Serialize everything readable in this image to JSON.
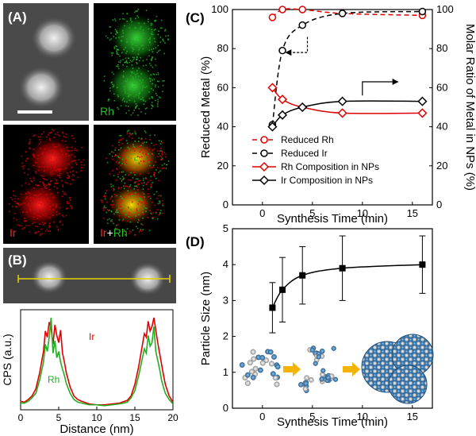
{
  "figure": {
    "panels": {
      "A": {
        "label": "(A)",
        "tiles": [
          "",
          "Rh",
          "Ir",
          "Ir+Rh"
        ],
        "tile_label_parts": {
          "ir": "Ir",
          "plus": "+",
          "rh": "Rh"
        }
      },
      "B": {
        "label": "(B)"
      },
      "C": {
        "label": "(C)"
      },
      "D": {
        "label": "(D)"
      }
    },
    "colors": {
      "rh": "#20b020",
      "ir": "#e00000",
      "black": "#000000",
      "line_profile": "#e6d200",
      "arrow_yellow": "#f4b400"
    }
  },
  "chart_data": [
    {
      "id": "B-profile",
      "type": "line",
      "xlabel": "Distance (nm)",
      "ylabel": "CPS (a.u.)",
      "xlim": [
        0,
        20
      ],
      "xticks": [
        0,
        5,
        10,
        15,
        20
      ],
      "series": [
        {
          "name": "Ir",
          "color": "#e00000",
          "x": [
            0,
            0.5,
            1,
            1.5,
            2,
            2.5,
            3,
            3.25,
            3.5,
            3.75,
            4,
            4.25,
            4.5,
            4.75,
            5,
            5.25,
            5.5,
            5.75,
            6,
            6.5,
            7,
            7.5,
            8,
            9,
            10,
            11,
            12,
            13,
            14,
            14.5,
            15,
            15.5,
            16,
            16.25,
            16.5,
            16.75,
            17,
            17.25,
            17.5,
            17.75,
            18,
            18.25,
            18.5,
            18.75,
            19,
            19.5,
            20
          ],
          "y": [
            0.06,
            0.05,
            0.08,
            0.12,
            0.2,
            0.38,
            0.62,
            0.85,
            0.78,
            0.95,
            0.88,
            0.7,
            0.92,
            0.8,
            0.72,
            0.86,
            0.6,
            0.5,
            0.38,
            0.22,
            0.12,
            0.08,
            0.06,
            0.03,
            0.02,
            0.02,
            0.03,
            0.04,
            0.07,
            0.12,
            0.25,
            0.45,
            0.7,
            0.82,
            0.78,
            0.96,
            0.85,
            0.9,
            1.0,
            0.86,
            0.72,
            0.6,
            0.48,
            0.36,
            0.25,
            0.12,
            0.05
          ]
        },
        {
          "name": "Rh",
          "color": "#20b020",
          "x": [
            0,
            0.5,
            1,
            1.5,
            2,
            2.5,
            3,
            3.25,
            3.5,
            3.75,
            4,
            4.25,
            4.5,
            4.75,
            5,
            5.25,
            5.5,
            5.75,
            6,
            6.5,
            7,
            7.5,
            8,
            9,
            10,
            11,
            12,
            13,
            14,
            14.5,
            15,
            15.5,
            16,
            16.25,
            16.5,
            16.75,
            17,
            17.25,
            17.5,
            17.75,
            18,
            18.25,
            18.5,
            18.75,
            19,
            19.5,
            20
          ],
          "y": [
            0.04,
            0.04,
            0.06,
            0.1,
            0.15,
            0.3,
            0.5,
            0.7,
            0.62,
            0.78,
            1.0,
            0.6,
            0.74,
            0.55,
            0.62,
            0.5,
            0.42,
            0.35,
            0.26,
            0.15,
            0.08,
            0.05,
            0.04,
            0.02,
            0.02,
            0.01,
            0.02,
            0.03,
            0.05,
            0.1,
            0.18,
            0.35,
            0.55,
            0.65,
            0.6,
            0.8,
            0.68,
            0.72,
            0.9,
            0.62,
            0.52,
            0.42,
            0.3,
            0.22,
            0.15,
            0.08,
            0.03
          ]
        }
      ]
    },
    {
      "id": "C",
      "type": "line",
      "xlabel": "Synthesis Time (min)",
      "ylabel": "Reduced Metal (%)",
      "ylabel_right": "Molar Ratio of Metal in NPs (%)",
      "xlim": [
        -3,
        17
      ],
      "ylim": [
        0,
        100
      ],
      "xticks": [
        0,
        5,
        10,
        15
      ],
      "yticks": [
        0,
        20,
        40,
        60,
        80,
        100
      ],
      "series": [
        {
          "name": "Reduced Rh",
          "color": "#e00000",
          "style": "dashed",
          "marker": "circle",
          "x": [
            1,
            2,
            4,
            8,
            16
          ],
          "y": [
            96,
            100,
            100,
            98,
            97
          ]
        },
        {
          "name": "Reduced Ir",
          "color": "#000000",
          "style": "dashed",
          "marker": "circle",
          "x": [
            1,
            2,
            4,
            8,
            16
          ],
          "y": [
            41,
            79,
            92,
            98,
            99
          ]
        },
        {
          "name": "Rh Composition in NPs",
          "color": "#e00000",
          "style": "solid",
          "marker": "diamond",
          "x": [
            1,
            2,
            4,
            8,
            16
          ],
          "y": [
            60,
            54,
            50,
            47,
            47
          ]
        },
        {
          "name": "Ir Composition in NPs",
          "color": "#000000",
          "style": "solid",
          "marker": "diamond",
          "x": [
            1,
            2,
            4,
            8,
            16
          ],
          "y": [
            40,
            46,
            50,
            53,
            53
          ]
        }
      ],
      "legend_position": "bottom-right"
    },
    {
      "id": "D",
      "type": "line",
      "xlabel": "Synthesis Time (min)",
      "ylabel": "Particle Size (nm)",
      "xlim": [
        -3,
        17
      ],
      "ylim": [
        0,
        5
      ],
      "xticks": [
        0,
        5,
        10,
        15
      ],
      "yticks": [
        0,
        1,
        2,
        3,
        4,
        5
      ],
      "series": [
        {
          "name": "",
          "color": "#000000",
          "marker": "square",
          "x": [
            1,
            2,
            4,
            8,
            16
          ],
          "y": [
            2.8,
            3.3,
            3.7,
            3.9,
            4.0
          ],
          "err_low": [
            2.1,
            2.4,
            2.9,
            3.0,
            3.2
          ],
          "err_high": [
            3.5,
            4.2,
            4.5,
            4.8,
            4.8
          ]
        }
      ]
    }
  ]
}
